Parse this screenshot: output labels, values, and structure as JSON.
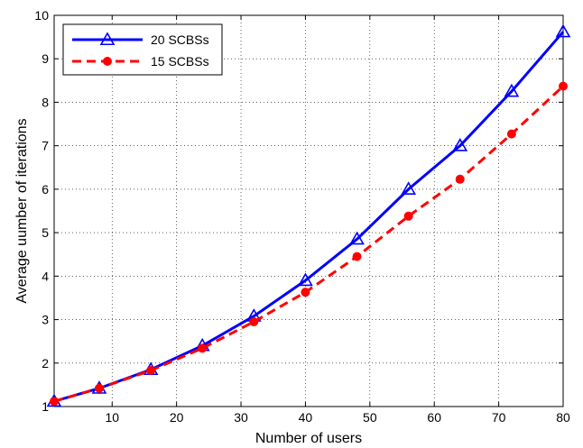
{
  "chart_data": {
    "type": "line",
    "title": "",
    "xlabel": "Number of users",
    "ylabel": "Average uumber of iterations",
    "xlim": [
      1,
      80
    ],
    "ylim": [
      1,
      10
    ],
    "xticks": [
      10,
      20,
      30,
      40,
      50,
      60,
      70,
      80
    ],
    "yticks": [
      1,
      2,
      3,
      4,
      5,
      6,
      7,
      8,
      9,
      10
    ],
    "grid": true,
    "legend_position": "top-left",
    "x": [
      1,
      8,
      16,
      24,
      32,
      40,
      48,
      56,
      64,
      72,
      80
    ],
    "series": [
      {
        "name": "20 SCBSs",
        "color": "#0000ff",
        "line_style": "solid",
        "marker": "triangle",
        "values": [
          1.12,
          1.42,
          1.85,
          2.4,
          3.08,
          3.9,
          4.85,
          6.0,
          7.0,
          8.25,
          9.62
        ]
      },
      {
        "name": "15 SCBSs",
        "color": "#ff0000",
        "line_style": "dashed",
        "marker": "circle",
        "values": [
          1.12,
          1.42,
          1.83,
          2.34,
          2.95,
          3.63,
          4.45,
          5.38,
          6.23,
          7.27,
          8.37
        ]
      }
    ]
  }
}
